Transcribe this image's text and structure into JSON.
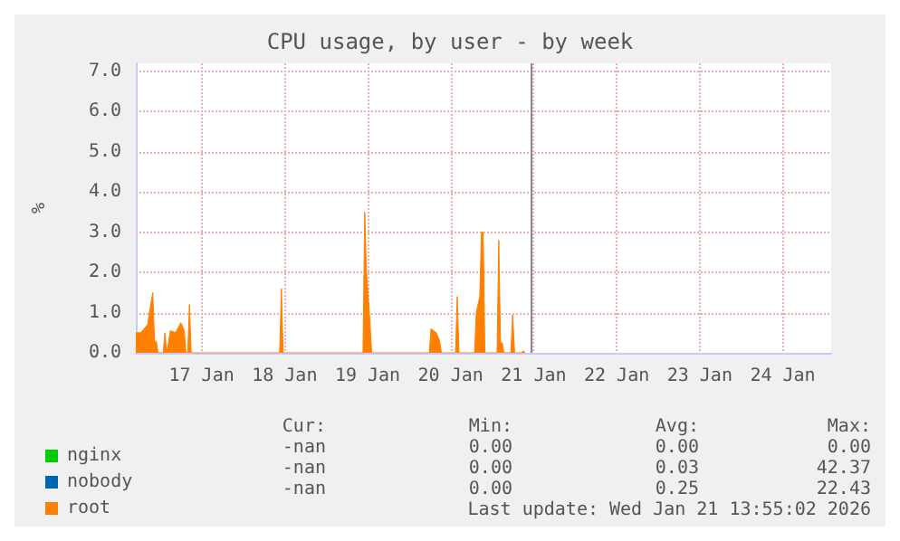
{
  "chart_data": {
    "type": "area",
    "title": "CPU usage, by user - by week",
    "ylabel": "%",
    "x": [
      "2026-01-16T17:00",
      "2026-01-16T18:25",
      "2026-01-16T19:25",
      "2026-01-16T20:25",
      "2026-01-16T20:55",
      "2026-01-16T21:55",
      "2026-01-16T22:25",
      "2026-01-16T22:55",
      "2026-01-16T23:25",
      "2026-01-17T00:55",
      "2026-01-17T01:25",
      "2026-01-17T01:55",
      "2026-01-17T03:00",
      "2026-01-17T04:30",
      "2026-01-17T06:00",
      "2026-01-17T07:00",
      "2026-01-17T07:30",
      "2026-01-17T08:00",
      "2026-01-17T08:30",
      "2026-01-17T09:00",
      "2026-01-17T09:30",
      "2026-01-18T10:35",
      "2026-01-18T11:05",
      "2026-01-18T11:35",
      "2026-01-19T10:40",
      "2026-01-19T11:10",
      "2026-01-19T11:40",
      "2026-01-19T12:40",
      "2026-01-19T13:10",
      "2026-01-20T05:50",
      "2026-01-20T06:20",
      "2026-01-20T07:50",
      "2026-01-20T08:50",
      "2026-01-20T09:20",
      "2026-01-20T13:25",
      "2026-01-20T13:55",
      "2026-01-20T14:25",
      "2026-01-20T18:55",
      "2026-01-20T19:25",
      "2026-01-20T20:25",
      "2026-01-20T20:55",
      "2026-01-20T21:25",
      "2026-01-20T21:55",
      "2026-01-21T01:25",
      "2026-01-21T01:55",
      "2026-01-21T02:25",
      "2026-01-21T02:55",
      "2026-01-21T03:25",
      "2026-01-21T05:25",
      "2026-01-21T05:55",
      "2026-01-21T06:30",
      "2026-01-21T08:30",
      "2026-01-21T09:00",
      "2026-01-21T09:30"
    ],
    "series": [
      {
        "name": "nginx",
        "color": "#00cc00",
        "values": [
          null,
          null,
          null,
          null,
          null,
          null,
          null,
          null,
          null,
          null,
          null,
          null,
          null,
          null,
          null,
          null,
          null,
          null,
          null,
          null,
          null,
          null,
          null,
          null,
          null,
          null,
          null,
          null,
          null,
          null,
          null,
          null,
          null,
          null,
          null,
          null,
          null,
          null,
          null,
          null,
          null,
          null,
          null,
          null,
          null,
          null,
          null,
          null,
          null,
          null,
          null,
          null,
          null,
          null
        ]
      },
      {
        "name": "nobody",
        "color": "#0066b3",
        "values": [
          null,
          null,
          null,
          null,
          null,
          null,
          null,
          null,
          null,
          null,
          null,
          null,
          null,
          null,
          null,
          null,
          null,
          null,
          null,
          null,
          null,
          null,
          null,
          null,
          null,
          null,
          null,
          null,
          null,
          null,
          null,
          null,
          null,
          null,
          null,
          null,
          null,
          null,
          null,
          null,
          null,
          null,
          null,
          null,
          null,
          null,
          null,
          null,
          null,
          null,
          null,
          null,
          null,
          null
        ]
      },
      {
        "name": "root",
        "color": "#ff8000",
        "values": [
          0.5,
          0.5,
          0.6,
          0.7,
          1.0,
          1.5,
          0.25,
          0.3,
          0,
          0,
          0.5,
          0,
          0.55,
          0.5,
          0.75,
          0.55,
          0,
          0,
          1.2,
          0,
          0,
          0,
          1.6,
          0,
          0,
          3.5,
          2.0,
          0.8,
          0,
          0,
          0.6,
          0.5,
          0.3,
          0,
          0,
          1.4,
          0,
          0,
          1.0,
          1.4,
          3.0,
          3.0,
          0,
          0,
          2.8,
          0.25,
          0.25,
          0,
          0,
          0.95,
          0,
          0,
          0.05,
          0
        ]
      }
    ],
    "xlim": [
      "2026-01-16T17:00",
      "2026-01-25T02:00"
    ],
    "xticks": [
      {
        "value": "2026-01-17T12:00",
        "label": "17 Jan"
      },
      {
        "value": "2026-01-18T12:00",
        "label": "18 Jan"
      },
      {
        "value": "2026-01-19T12:00",
        "label": "19 Jan"
      },
      {
        "value": "2026-01-20T12:00",
        "label": "20 Jan"
      },
      {
        "value": "2026-01-21T12:00",
        "label": "21 Jan"
      },
      {
        "value": "2026-01-22T12:00",
        "label": "22 Jan"
      },
      {
        "value": "2026-01-23T12:00",
        "label": "23 Jan"
      },
      {
        "value": "2026-01-24T12:00",
        "label": "24 Jan"
      }
    ],
    "ylim": [
      0,
      7.2
    ],
    "yticks": [
      {
        "value": 0,
        "label": "0.0"
      },
      {
        "value": 1,
        "label": "1.0"
      },
      {
        "value": 2,
        "label": "2.0"
      },
      {
        "value": 3,
        "label": "3.0"
      },
      {
        "value": 4,
        "label": "4.0"
      },
      {
        "value": 5,
        "label": "5.0"
      },
      {
        "value": 6,
        "label": "6.0"
      },
      {
        "value": 7,
        "label": "7.0"
      }
    ],
    "grid": true,
    "legend": "bottom left",
    "ref_lines": [
      {
        "axis": "x",
        "value": "2026-01-21T11:30",
        "color": "#888888"
      }
    ],
    "annotations": [
      "Cur:",
      "Min:",
      "Avg:",
      "Max:",
      "-nan",
      "0.00",
      "0.00",
      "0.00",
      "-nan",
      "0.00",
      "0.03",
      "42.37",
      "-nan",
      "0.00",
      "0.25",
      "22.43",
      "Last update: Wed Jan 21 13:55:02 2026"
    ]
  }
}
